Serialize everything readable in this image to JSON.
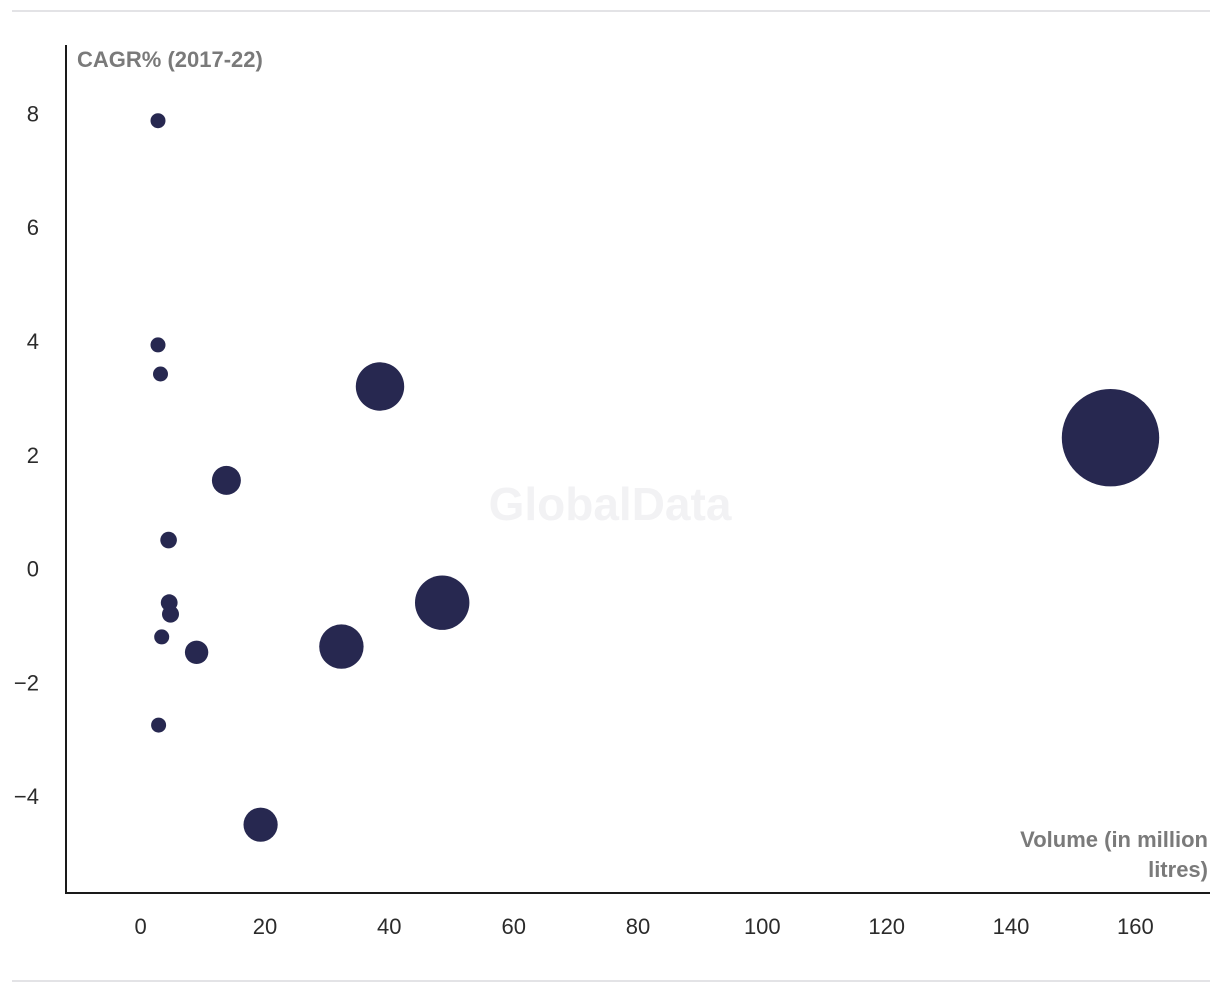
{
  "watermark": "GlobalData",
  "chart_data": {
    "type": "scatter",
    "variant": "bubble",
    "ylabel": "CAGR% (2017-22)",
    "xlabel_lines": [
      "Volume (in million",
      "litres)"
    ],
    "xlim": [
      -12,
      172
    ],
    "ylim": [
      -5.7,
      9.2
    ],
    "x_ticks": [
      0,
      20,
      40,
      60,
      80,
      100,
      120,
      140,
      160
    ],
    "y_ticks": [
      8,
      6,
      4,
      2,
      0,
      -2,
      -4
    ],
    "y_tick_labels": [
      "8",
      "6",
      "4",
      "2",
      "0",
      "−2",
      "−4"
    ],
    "grid": false,
    "legend": "none",
    "bubble_color": "#272850",
    "points": [
      {
        "x": 156,
        "y": 2.3
      },
      {
        "x": 48.5,
        "y": -0.6
      },
      {
        "x": 38.5,
        "y": 3.2
      },
      {
        "x": 32.3,
        "y": -1.37
      },
      {
        "x": 19.3,
        "y": -4.5
      },
      {
        "x": 13.8,
        "y": 1.55
      },
      {
        "x": 9,
        "y": -1.47
      },
      {
        "x": 4.6,
        "y": -0.6
      },
      {
        "x": 4.8,
        "y": -0.8
      },
      {
        "x": 4.5,
        "y": 0.5
      },
      {
        "x": 3.4,
        "y": -1.2
      },
      {
        "x": 3.2,
        "y": 3.42
      },
      {
        "x": 2.8,
        "y": 3.93
      },
      {
        "x": 2.8,
        "y": 7.87
      },
      {
        "x": 2.9,
        "y": -2.75
      }
    ]
  }
}
